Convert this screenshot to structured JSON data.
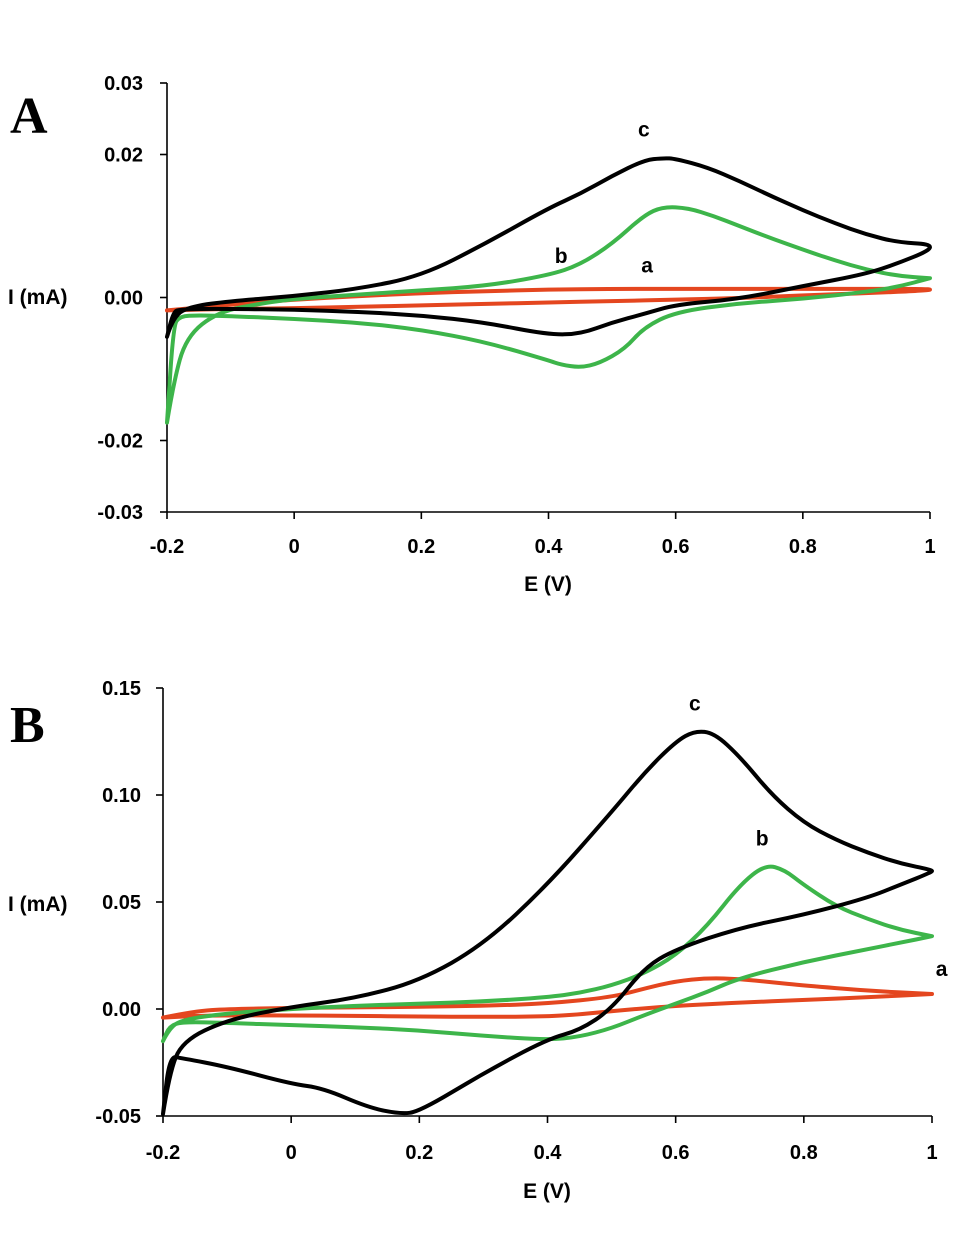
{
  "chart_data": [
    {
      "type": "line",
      "panel_label": "A",
      "xlabel": "E (V)",
      "ylabel": "I (mA)",
      "xlim": [
        -0.2,
        1.0
      ],
      "ylim": [
        -0.03,
        0.03
      ],
      "x_ticks": [
        "-0.2",
        "0",
        "0.2",
        "0.4",
        "0.6",
        "0.8",
        "1"
      ],
      "y_ticks": [
        "0.03",
        "0.02",
        "0.00",
        "-0.02",
        "-0.03"
      ],
      "y_tick_values": [
        0.03,
        0.02,
        0.0,
        -0.02,
        -0.03
      ],
      "series": [
        {
          "name": "a",
          "color": "#e4461f",
          "label": "a",
          "label_at": [
            0.555,
            0.0035
          ],
          "x": [
            -0.2,
            -0.15,
            -0.1,
            0.0,
            0.1,
            0.2,
            0.3,
            0.4,
            0.5,
            0.6,
            0.7,
            0.8,
            0.9,
            1.0,
            1.0,
            0.9,
            0.8,
            0.7,
            0.6,
            0.5,
            0.4,
            0.3,
            0.2,
            0.1,
            0.0,
            -0.1,
            -0.15,
            -0.2
          ],
          "y": [
            -0.0018,
            -0.0014,
            -0.001,
            -0.0003,
            0.0002,
            0.0006,
            0.0009,
            0.0011,
            0.0012,
            0.0012,
            0.0012,
            0.0012,
            0.0012,
            0.0012,
            0.001,
            0.0006,
            0.0003,
            -0.0001,
            -0.0003,
            -0.0005,
            -0.0007,
            -0.0009,
            -0.0011,
            -0.0013,
            -0.0015,
            -0.0016,
            -0.0017,
            -0.0018
          ]
        },
        {
          "name": "b",
          "color": "#3db54a",
          "label": "b",
          "label_at": [
            0.42,
            0.0048
          ],
          "x": [
            -0.2,
            -0.19,
            -0.17,
            -0.12,
            -0.05,
            0.0,
            0.1,
            0.2,
            0.3,
            0.4,
            0.45,
            0.5,
            0.55,
            0.58,
            0.62,
            0.66,
            0.7,
            0.75,
            0.8,
            0.85,
            0.9,
            0.95,
            1.0,
            1.0,
            0.95,
            0.9,
            0.8,
            0.7,
            0.6,
            0.55,
            0.52,
            0.48,
            0.45,
            0.42,
            0.4,
            0.3,
            0.2,
            0.1,
            0.0,
            -0.1,
            -0.15,
            -0.18,
            -0.19,
            -0.2
          ],
          "y": [
            -0.0175,
            -0.012,
            -0.0055,
            -0.002,
            -0.0008,
            -0.0002,
            0.0004,
            0.001,
            0.0016,
            0.0031,
            0.0046,
            0.0075,
            0.0115,
            0.0127,
            0.0125,
            0.0114,
            0.01,
            0.0083,
            0.0067,
            0.0052,
            0.0039,
            0.003,
            0.0027,
            0.0027,
            0.0015,
            0.0008,
            -0.0002,
            -0.0008,
            -0.002,
            -0.0042,
            -0.0072,
            -0.0092,
            -0.0098,
            -0.0094,
            -0.0088,
            -0.0062,
            -0.0045,
            -0.0035,
            -0.003,
            -0.0026,
            -0.0025,
            -0.0026,
            -0.004,
            -0.0175
          ]
        },
        {
          "name": "c",
          "color": "#000000",
          "label": "c",
          "label_at": [
            0.55,
            0.0225
          ],
          "x": [
            -0.2,
            -0.19,
            -0.16,
            -0.1,
            0.0,
            0.1,
            0.2,
            0.3,
            0.4,
            0.45,
            0.5,
            0.55,
            0.58,
            0.6,
            0.65,
            0.7,
            0.75,
            0.8,
            0.85,
            0.9,
            0.95,
            1.0,
            1.0,
            0.95,
            0.9,
            0.8,
            0.7,
            0.6,
            0.55,
            0.5,
            0.45,
            0.4,
            0.3,
            0.2,
            0.1,
            0.0,
            -0.1,
            -0.15,
            -0.18,
            -0.19,
            -0.2
          ],
          "y": [
            -0.0055,
            -0.0025,
            -0.0012,
            -0.0005,
            0.0002,
            0.0012,
            0.003,
            0.0075,
            0.0125,
            0.0145,
            0.017,
            0.0192,
            0.0195,
            0.0194,
            0.0182,
            0.0163,
            0.0142,
            0.0122,
            0.0104,
            0.0088,
            0.0077,
            0.0075,
            0.0066,
            0.0048,
            0.0033,
            0.0016,
            -0.0002,
            -0.001,
            -0.0023,
            -0.0035,
            -0.0051,
            -0.0052,
            -0.0035,
            -0.0025,
            -0.002,
            -0.0017,
            -0.0016,
            -0.0016,
            -0.0017,
            -0.002,
            -0.0055
          ]
        }
      ]
    },
    {
      "type": "line",
      "panel_label": "B",
      "xlabel": "E (V)",
      "ylabel": "I (mA)",
      "xlim": [
        -0.2,
        1.0
      ],
      "ylim": [
        -0.05,
        0.15
      ],
      "x_ticks": [
        "-0.2",
        "0",
        "0.2",
        "0.4",
        "0.6",
        "0.8",
        "1"
      ],
      "y_ticks": [
        "0.15",
        "0.10",
        "0.05",
        "0.00",
        "-0.05"
      ],
      "y_tick_values": [
        0.15,
        0.1,
        0.05,
        0.0,
        -0.05
      ],
      "series": [
        {
          "name": "a",
          "color": "#e4461f",
          "label": "a",
          "label_at": [
            1.015,
            0.0155
          ],
          "x": [
            -0.2,
            -0.15,
            -0.1,
            0.0,
            0.1,
            0.2,
            0.3,
            0.4,
            0.5,
            0.55,
            0.6,
            0.65,
            0.7,
            0.75,
            0.8,
            0.9,
            1.0,
            1.0,
            0.9,
            0.8,
            0.7,
            0.6,
            0.55,
            0.5,
            0.45,
            0.4,
            0.3,
            0.2,
            0.1,
            0.0,
            -0.1,
            -0.15,
            -0.2
          ],
          "y": [
            -0.004,
            -0.001,
            0.0,
            0.0005,
            0.0008,
            0.001,
            0.0015,
            0.0025,
            0.0055,
            0.0095,
            0.013,
            0.0145,
            0.014,
            0.0125,
            0.011,
            0.0085,
            0.007,
            0.007,
            0.0055,
            0.0042,
            0.003,
            0.0015,
            0.0003,
            -0.001,
            -0.0025,
            -0.0035,
            -0.0037,
            -0.0035,
            -0.0032,
            -0.003,
            -0.003,
            -0.0032,
            -0.004
          ]
        },
        {
          "name": "b",
          "color": "#3db54a",
          "label": "b",
          "label_at": [
            0.735,
            0.0765
          ],
          "x": [
            -0.2,
            -0.19,
            -0.17,
            -0.1,
            0.0,
            0.1,
            0.2,
            0.3,
            0.4,
            0.45,
            0.5,
            0.55,
            0.6,
            0.65,
            0.7,
            0.74,
            0.77,
            0.8,
            0.85,
            0.9,
            0.95,
            1.0,
            1.0,
            0.95,
            0.9,
            0.8,
            0.7,
            0.65,
            0.6,
            0.55,
            0.5,
            0.45,
            0.4,
            0.3,
            0.2,
            0.1,
            0.0,
            -0.1,
            -0.17,
            -0.19,
            -0.2
          ],
          "y": [
            -0.015,
            -0.009,
            -0.005,
            -0.002,
            0.0,
            0.0015,
            0.0025,
            0.0035,
            0.0055,
            0.0075,
            0.011,
            0.0165,
            0.025,
            0.039,
            0.058,
            0.0675,
            0.065,
            0.058,
            0.048,
            0.042,
            0.037,
            0.034,
            0.034,
            0.031,
            0.028,
            0.022,
            0.0145,
            0.008,
            0.0025,
            -0.003,
            -0.009,
            -0.013,
            -0.0145,
            -0.0125,
            -0.01,
            -0.0085,
            -0.0075,
            -0.0065,
            -0.006,
            -0.008,
            -0.015
          ]
        },
        {
          "name": "c",
          "color": "#000000",
          "label": "c",
          "label_at": [
            0.63,
            0.1395
          ],
          "x": [
            -0.2,
            -0.19,
            -0.17,
            -0.1,
            0.0,
            0.1,
            0.2,
            0.3,
            0.4,
            0.5,
            0.55,
            0.6,
            0.63,
            0.66,
            0.7,
            0.75,
            0.8,
            0.85,
            0.9,
            0.95,
            1.0,
            1.0,
            0.95,
            0.9,
            0.8,
            0.7,
            0.6,
            0.55,
            0.5,
            0.45,
            0.4,
            0.3,
            0.2,
            0.17,
            0.12,
            0.05,
            0.0,
            -0.1,
            -0.17,
            -0.19,
            -0.2
          ],
          "y": [
            -0.049,
            -0.03,
            -0.015,
            -0.005,
            0.001,
            0.005,
            0.013,
            0.03,
            0.058,
            0.092,
            0.11,
            0.125,
            0.13,
            0.129,
            0.118,
            0.1,
            0.087,
            0.079,
            0.073,
            0.068,
            0.065,
            0.064,
            0.058,
            0.052,
            0.044,
            0.038,
            0.028,
            0.019,
            0.0,
            -0.01,
            -0.014,
            -0.03,
            -0.048,
            -0.049,
            -0.046,
            -0.037,
            -0.035,
            -0.027,
            -0.023,
            -0.022,
            -0.049
          ]
        }
      ]
    }
  ]
}
